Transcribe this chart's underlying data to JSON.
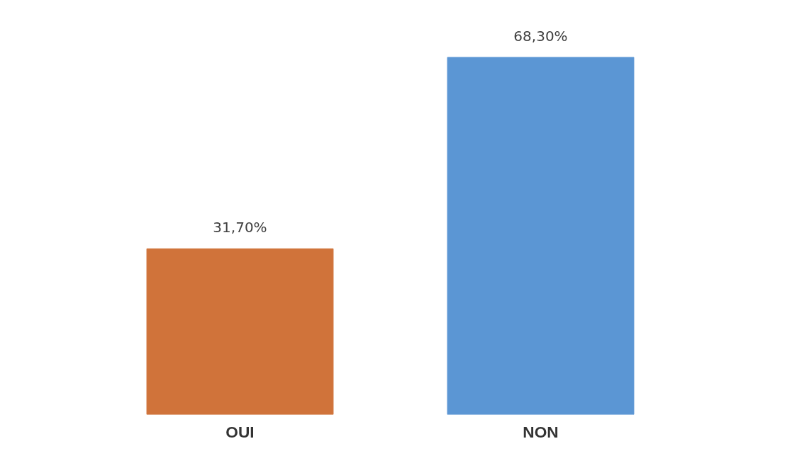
{
  "chart_data": {
    "type": "bar",
    "categories": [
      "OUI",
      "NON"
    ],
    "values": [
      31.7,
      68.3
    ],
    "value_labels": [
      "31,70%",
      "68,30%"
    ],
    "colors": [
      "#d0733a",
      "#5b96d4"
    ],
    "grid": false,
    "tick_labels": "x"
  }
}
